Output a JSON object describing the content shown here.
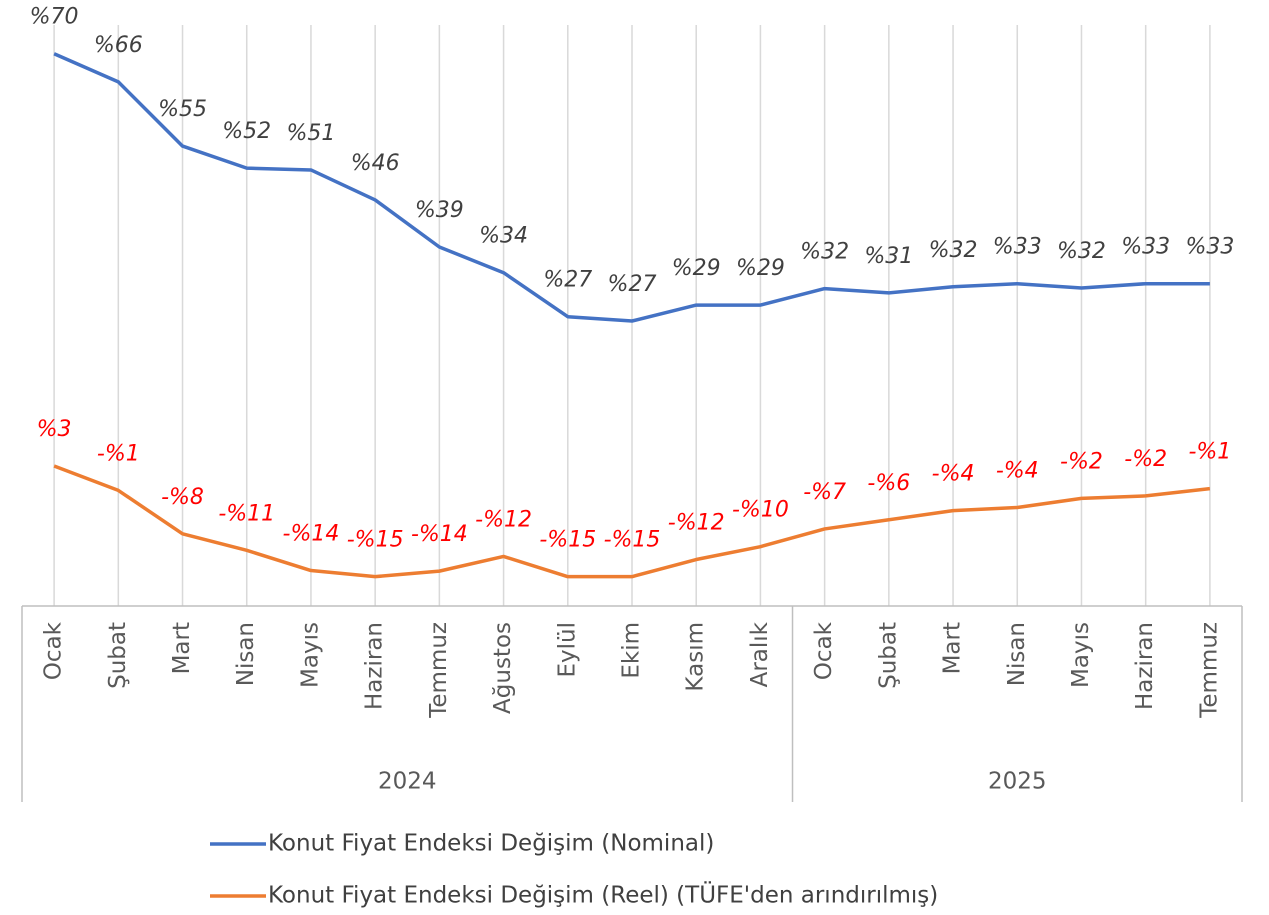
{
  "chart_data": {
    "type": "line",
    "categories": [
      "Ocak",
      "Şubat",
      "Mart",
      "Nisan",
      "Mayıs",
      "Haziran",
      "Temmuz",
      "Ağustos",
      "Eylül",
      "Ekim",
      "Kasım",
      "Aralık",
      "Ocak",
      "Şubat",
      "Mart",
      "Nisan",
      "Mayıs",
      "Haziran",
      "Temmuz"
    ],
    "year": [
      "2024",
      "2024",
      "2024",
      "2024",
      "2024",
      "2024",
      "2024",
      "2024",
      "2024",
      "2024",
      "2024",
      "2024",
      "2025",
      "2025",
      "2025",
      "2025",
      "2025",
      "2025",
      "2025"
    ],
    "series": [
      {
        "name": "Konut Fiyat Endeksi Değişim (Nominal)",
        "color": "#4472c4",
        "label_color": "#404040",
        "values": [
          70.3,
          65.7,
          55.2,
          51.6,
          51.3,
          46.4,
          38.7,
          34.5,
          27.3,
          26.6,
          29.2,
          29.2,
          31.9,
          31.2,
          32.2,
          32.7,
          32.0,
          32.7,
          32.7
        ],
        "value_labels": [
          "%70",
          "%66",
          "%55",
          "%52",
          "%51",
          "%46",
          "%39",
          "%34",
          "%27",
          "%27",
          "%29",
          "%29",
          "%32",
          "%31",
          "%32",
          "%33",
          "%32",
          "%33",
          "%33"
        ]
      },
      {
        "name": "Konut Fiyat Endeksi Değişim (Reel) (TÜFE'den arındırılmış)",
        "color": "#ed7d31",
        "label_color": "#ff0000",
        "values": [
          2.9,
          -1.1,
          -8.2,
          -10.9,
          -14.2,
          -15.2,
          -14.3,
          -11.9,
          -15.2,
          -15.2,
          -12.4,
          -10.3,
          -7.4,
          -5.9,
          -4.4,
          -3.9,
          -2.4,
          -2.0,
          -0.8
        ],
        "value_labels": [
          "%3",
          "-%1",
          "-%8",
          "-%11",
          "-%14",
          "-%15",
          "-%14",
          "-%12",
          "-%15",
          "-%15",
          "-%12",
          "-%10",
          "-%7",
          "-%6",
          "-%4",
          "-%4",
          "-%2",
          "-%2",
          "-%1"
        ]
      }
    ],
    "ylim": [
      -20,
      75
    ],
    "grid": true
  }
}
